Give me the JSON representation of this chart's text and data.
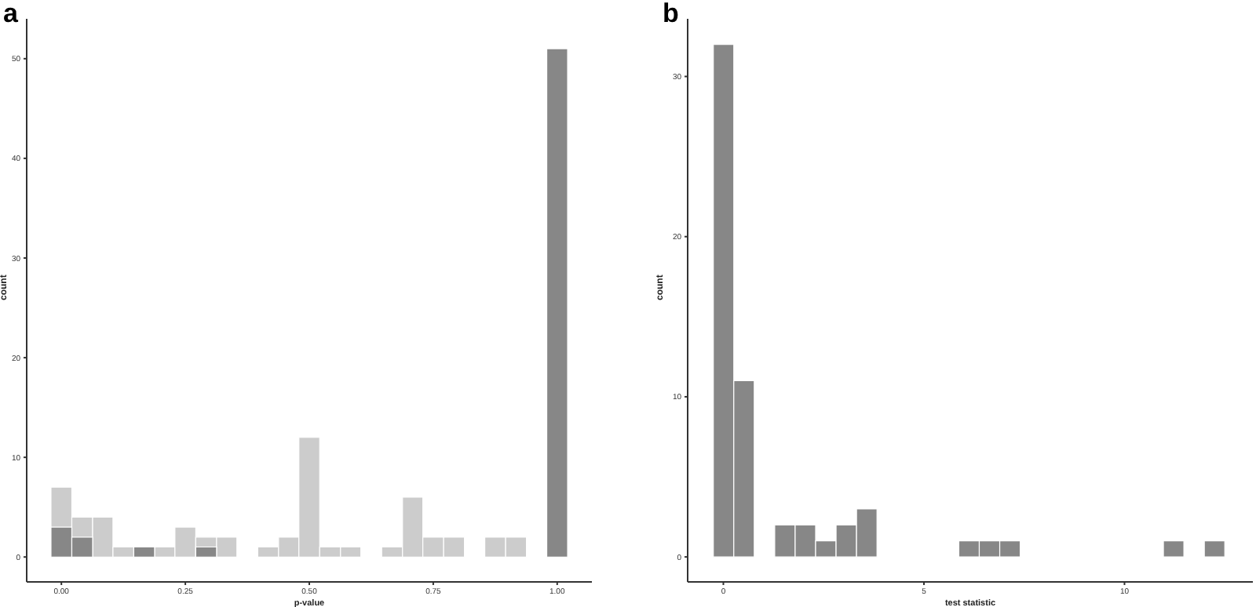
{
  "chart_data": [
    {
      "type": "histogram",
      "title": "a",
      "xlabel": "p-value",
      "ylabel": "count",
      "bins": [
        -0.021,
        0.021,
        0.063,
        0.104,
        0.146,
        0.188,
        0.229,
        0.271,
        0.313,
        0.354,
        0.396,
        0.438,
        0.479,
        0.521,
        0.563,
        0.604,
        0.646,
        0.688,
        0.729,
        0.771,
        0.813,
        0.854,
        0.896,
        0.938,
        0.979,
        1.021
      ],
      "series": [
        {
          "color": "#cccccc",
          "values": [
            7,
            4,
            4,
            1,
            null,
            1,
            3,
            2,
            2,
            0,
            1,
            2,
            12,
            1,
            1,
            0,
            1,
            6,
            2,
            2,
            0,
            2,
            2,
            0,
            0
          ]
        },
        {
          "color": "#878787",
          "values": [
            3,
            2,
            0,
            0,
            1,
            0,
            0,
            1,
            0,
            0,
            0,
            0,
            0,
            0,
            0,
            0,
            0,
            0,
            0,
            0,
            0,
            0,
            0,
            0,
            51
          ]
        }
      ],
      "xlim": [
        -0.07,
        1.07
      ],
      "xticks": [
        {
          "value": 0,
          "label": "0.00"
        },
        {
          "value": 0.25,
          "label": "0.25"
        },
        {
          "value": 0.5,
          "label": "0.50"
        },
        {
          "value": 0.75,
          "label": "0.75"
        },
        {
          "value": 1,
          "label": "1.00"
        }
      ],
      "ylim": [
        -2.5,
        54
      ],
      "yticks": [
        0,
        10,
        20,
        30,
        40,
        50
      ],
      "grid": false
    },
    {
      "type": "histogram",
      "title": "b",
      "xlabel": "test statistic",
      "ylabel": "count",
      "bins": [
        -0.25,
        0.26,
        0.77,
        1.28,
        1.79,
        2.3,
        2.81,
        3.32,
        3.83,
        4.34,
        4.85,
        5.36,
        5.87,
        6.38,
        6.89,
        7.4,
        7.91,
        8.42,
        8.93,
        9.44,
        9.95,
        10.46,
        10.97,
        11.48,
        11.99,
        12.5
      ],
      "series": [
        {
          "color": "#878787",
          "values": [
            32,
            11,
            0,
            2,
            2,
            1,
            2,
            3,
            0,
            0,
            0,
            0,
            1,
            1,
            1,
            0,
            0,
            0,
            0,
            0,
            0,
            0,
            1,
            0,
            1
          ]
        }
      ],
      "xlim": [
        -0.89,
        13.2
      ],
      "xticks": [
        0,
        5,
        10
      ],
      "ylim": [
        -1.56,
        33.6
      ],
      "yticks": [
        0,
        10,
        20,
        30
      ],
      "grid": false
    }
  ]
}
